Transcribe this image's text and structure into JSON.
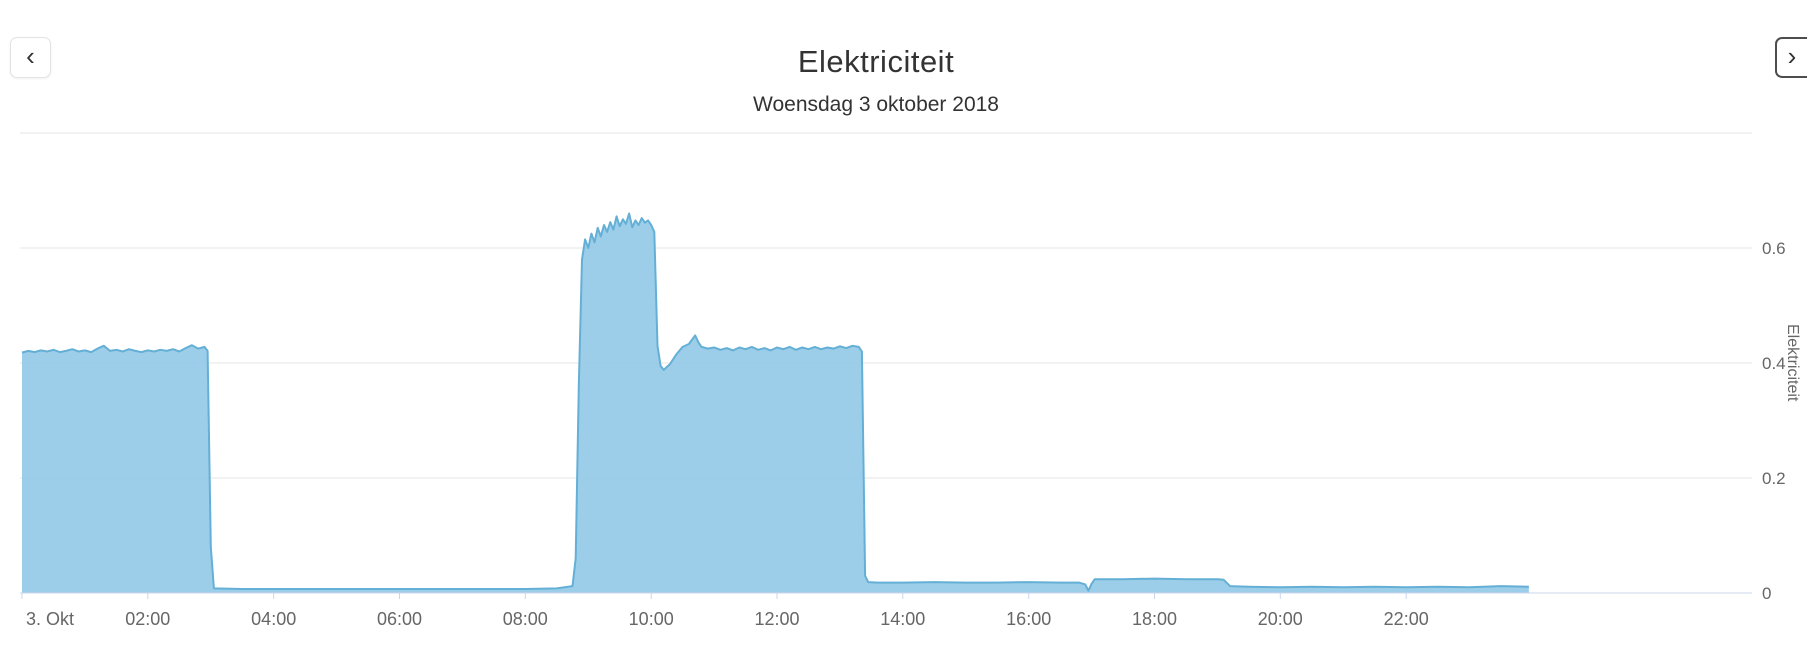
{
  "header": {
    "prev_label": "‹",
    "next_label": "›"
  },
  "colors": {
    "series_fill": "#8CC5E5",
    "series_line": "#64AFD6",
    "grid": "#e6e6e6",
    "axis": "#ccd6eb",
    "label": "#666666",
    "title": "#333333"
  },
  "chart_data": {
    "type": "area",
    "title": "Elektriciteit",
    "subtitle": "Woensdag 3 oktober 2018",
    "xlabel": "",
    "ylabel": "Elektriciteit",
    "x_unit": "hour-of-day",
    "xlim": [
      0,
      24
    ],
    "ylim": [
      0,
      0.8
    ],
    "grid": true,
    "legend": false,
    "x_ticks": [
      {
        "h": 0,
        "label": "3. Okt"
      },
      {
        "h": 2,
        "label": "02:00"
      },
      {
        "h": 4,
        "label": "04:00"
      },
      {
        "h": 6,
        "label": "06:00"
      },
      {
        "h": 8,
        "label": "08:00"
      },
      {
        "h": 10,
        "label": "10:00"
      },
      {
        "h": 12,
        "label": "12:00"
      },
      {
        "h": 14,
        "label": "14:00"
      },
      {
        "h": 16,
        "label": "16:00"
      },
      {
        "h": 18,
        "label": "18:00"
      },
      {
        "h": 20,
        "label": "20:00"
      },
      {
        "h": 22,
        "label": "22:00"
      }
    ],
    "y_ticks": [
      {
        "v": 0,
        "label": "0"
      },
      {
        "v": 0.2,
        "label": "0.2"
      },
      {
        "v": 0.4,
        "label": "0.4"
      },
      {
        "v": 0.6,
        "label": "0.6"
      },
      {
        "v": 0.8,
        "label": ""
      }
    ],
    "series": [
      {
        "name": "Elektriciteit",
        "points": [
          [
            0,
            0.418
          ],
          [
            0.1,
            0.421
          ],
          [
            0.2,
            0.419
          ],
          [
            0.3,
            0.422
          ],
          [
            0.4,
            0.42
          ],
          [
            0.5,
            0.423
          ],
          [
            0.6,
            0.419
          ],
          [
            0.7,
            0.421
          ],
          [
            0.8,
            0.424
          ],
          [
            0.9,
            0.42
          ],
          [
            1,
            0.422
          ],
          [
            1.1,
            0.419
          ],
          [
            1.2,
            0.425
          ],
          [
            1.3,
            0.43
          ],
          [
            1.4,
            0.421
          ],
          [
            1.5,
            0.423
          ],
          [
            1.6,
            0.42
          ],
          [
            1.7,
            0.424
          ],
          [
            1.8,
            0.421
          ],
          [
            1.9,
            0.419
          ],
          [
            2,
            0.422
          ],
          [
            2.1,
            0.42
          ],
          [
            2.2,
            0.423
          ],
          [
            2.3,
            0.421
          ],
          [
            2.4,
            0.424
          ],
          [
            2.5,
            0.42
          ],
          [
            2.6,
            0.426
          ],
          [
            2.7,
            0.431
          ],
          [
            2.8,
            0.425
          ],
          [
            2.9,
            0.428
          ],
          [
            2.95,
            0.421
          ],
          [
            3,
            0.08
          ],
          [
            3.05,
            0.008
          ],
          [
            3.5,
            0.007
          ],
          [
            4,
            0.007
          ],
          [
            4.5,
            0.007
          ],
          [
            5,
            0.007
          ],
          [
            5.5,
            0.007
          ],
          [
            6,
            0.007
          ],
          [
            6.5,
            0.007
          ],
          [
            7,
            0.007
          ],
          [
            7.5,
            0.007
          ],
          [
            8,
            0.007
          ],
          [
            8.5,
            0.008
          ],
          [
            8.75,
            0.012
          ],
          [
            8.8,
            0.06
          ],
          [
            8.85,
            0.36
          ],
          [
            8.9,
            0.58
          ],
          [
            8.95,
            0.615
          ],
          [
            9,
            0.6
          ],
          [
            9.05,
            0.625
          ],
          [
            9.1,
            0.61
          ],
          [
            9.15,
            0.635
          ],
          [
            9.2,
            0.62
          ],
          [
            9.25,
            0.64
          ],
          [
            9.3,
            0.628
          ],
          [
            9.35,
            0.645
          ],
          [
            9.4,
            0.632
          ],
          [
            9.45,
            0.655
          ],
          [
            9.5,
            0.638
          ],
          [
            9.55,
            0.65
          ],
          [
            9.6,
            0.642
          ],
          [
            9.65,
            0.66
          ],
          [
            9.7,
            0.636
          ],
          [
            9.75,
            0.648
          ],
          [
            9.8,
            0.64
          ],
          [
            9.85,
            0.652
          ],
          [
            9.9,
            0.644
          ],
          [
            9.95,
            0.648
          ],
          [
            10,
            0.64
          ],
          [
            10.05,
            0.628
          ],
          [
            10.1,
            0.43
          ],
          [
            10.15,
            0.395
          ],
          [
            10.2,
            0.388
          ],
          [
            10.3,
            0.398
          ],
          [
            10.4,
            0.415
          ],
          [
            10.5,
            0.428
          ],
          [
            10.6,
            0.433
          ],
          [
            10.7,
            0.448
          ],
          [
            10.75,
            0.436
          ],
          [
            10.8,
            0.428
          ],
          [
            10.9,
            0.425
          ],
          [
            11,
            0.427
          ],
          [
            11.1,
            0.423
          ],
          [
            11.2,
            0.426
          ],
          [
            11.3,
            0.422
          ],
          [
            11.4,
            0.427
          ],
          [
            11.5,
            0.424
          ],
          [
            11.6,
            0.428
          ],
          [
            11.7,
            0.423
          ],
          [
            11.8,
            0.426
          ],
          [
            11.9,
            0.422
          ],
          [
            12,
            0.427
          ],
          [
            12.1,
            0.424
          ],
          [
            12.2,
            0.428
          ],
          [
            12.3,
            0.423
          ],
          [
            12.4,
            0.427
          ],
          [
            12.5,
            0.424
          ],
          [
            12.6,
            0.428
          ],
          [
            12.7,
            0.424
          ],
          [
            12.8,
            0.427
          ],
          [
            12.9,
            0.425
          ],
          [
            13,
            0.429
          ],
          [
            13.1,
            0.426
          ],
          [
            13.2,
            0.43
          ],
          [
            13.3,
            0.428
          ],
          [
            13.35,
            0.42
          ],
          [
            13.4,
            0.03
          ],
          [
            13.45,
            0.019
          ],
          [
            13.6,
            0.018
          ],
          [
            14,
            0.018
          ],
          [
            14.5,
            0.019
          ],
          [
            15,
            0.018
          ],
          [
            15.5,
            0.018
          ],
          [
            16,
            0.019
          ],
          [
            16.5,
            0.018
          ],
          [
            16.8,
            0.018
          ],
          [
            16.9,
            0.015
          ],
          [
            16.95,
            0.004
          ],
          [
            17,
            0.016
          ],
          [
            17.05,
            0.024
          ],
          [
            17.2,
            0.024
          ],
          [
            17.5,
            0.024
          ],
          [
            18,
            0.025
          ],
          [
            18.5,
            0.024
          ],
          [
            19,
            0.024
          ],
          [
            19.1,
            0.023
          ],
          [
            19.2,
            0.012
          ],
          [
            19.5,
            0.011
          ],
          [
            20,
            0.01
          ],
          [
            20.5,
            0.011
          ],
          [
            21,
            0.01
          ],
          [
            21.5,
            0.011
          ],
          [
            22,
            0.01
          ],
          [
            22.5,
            0.011
          ],
          [
            23,
            0.01
          ],
          [
            23.5,
            0.012
          ],
          [
            23.95,
            0.011
          ]
        ]
      }
    ]
  }
}
